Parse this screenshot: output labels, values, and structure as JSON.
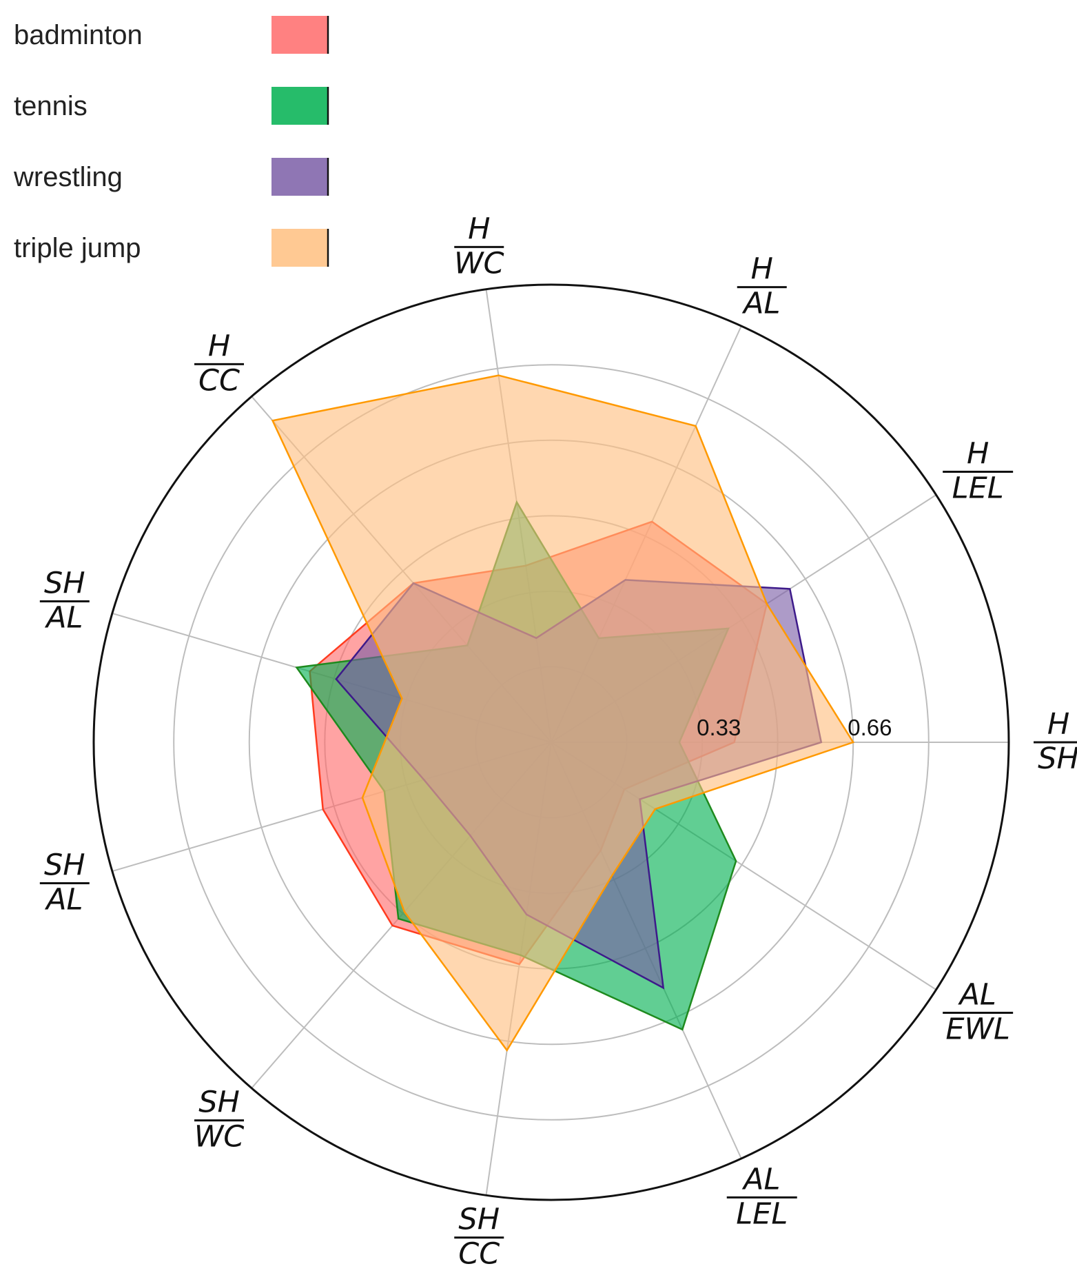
{
  "chart_data": {
    "type": "radar",
    "title": "",
    "axes": [
      {
        "num": "H",
        "den": "SH"
      },
      {
        "num": "H",
        "den": "LEL"
      },
      {
        "num": "H",
        "den": "AL"
      },
      {
        "num": "H",
        "den": "WC"
      },
      {
        "num": "H",
        "den": "CC"
      },
      {
        "num": "SH",
        "den": "AL"
      },
      {
        "num": "SH",
        "den": "AL"
      },
      {
        "num": "SH",
        "den": "WC"
      },
      {
        "num": "SH",
        "den": "CC"
      },
      {
        "num": "AL",
        "den": "LEL"
      },
      {
        "num": "AL",
        "den": "EWL"
      }
    ],
    "radial_ticks": [
      0.33,
      0.66
    ],
    "radial_tick_labels": [
      "0.33",
      "0.66"
    ],
    "rmax": 1.0,
    "gridlines": true,
    "legend_position": "top-left",
    "series": [
      {
        "name": "badminton",
        "color": "#ff6b6b",
        "edge": "#ff3b1f",
        "values": [
          0.4,
          0.56,
          0.53,
          0.39,
          0.46,
          0.55,
          0.52,
          0.53,
          0.49,
          0.26,
          0.19
        ]
      },
      {
        "name": "tennis",
        "color": "#00b050",
        "edge": "#1e8a1e",
        "values": [
          0.28,
          0.46,
          0.25,
          0.53,
          0.28,
          0.58,
          0.38,
          0.51,
          0.47,
          0.69,
          0.48
        ]
      },
      {
        "name": "wrestling",
        "color": "#7b5ea7",
        "edge": "#3d1a8a",
        "values": [
          0.59,
          0.62,
          0.39,
          0.23,
          0.46,
          0.49,
          0.29,
          0.27,
          0.38,
          0.59,
          0.23
        ]
      },
      {
        "name": "triple jump",
        "color": "#ffbf80",
        "edge": "#ff9900",
        "values": [
          0.66,
          0.56,
          0.76,
          0.81,
          0.93,
          0.34,
          0.43,
          0.49,
          0.68,
          0.32,
          0.27
        ]
      }
    ]
  }
}
